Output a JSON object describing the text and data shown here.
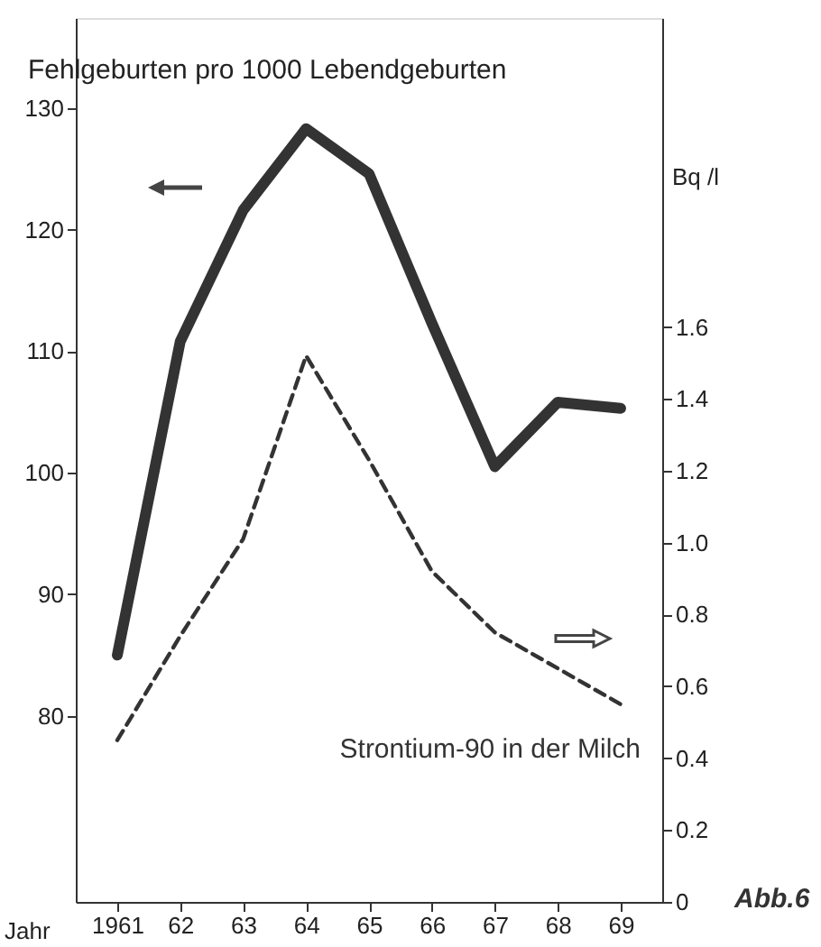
{
  "chart_data": {
    "type": "line",
    "ylabel": "Fehlgeburten pro 1000 Lebendgeburten",
    "xlabel": "Jahr",
    "y2label": "Bq /l",
    "annotations": [
      "Abb.6"
    ],
    "categories": [
      "1961",
      "62",
      "63",
      "64",
      "65",
      "66",
      "67",
      "68",
      "69"
    ],
    "series": [
      {
        "color": "#333333",
        "line_style": "solid",
        "values": [
          85.0,
          110.8,
          121.6,
          128.3,
          124.6,
          112.3,
          100.5,
          105.8,
          105.3
        ]
      },
      {
        "name": "Strontium-90 in der Milch",
        "axis": "y2",
        "color": "#333333",
        "line_style": "dashed",
        "values": [
          0.45,
          0.74,
          1.01,
          1.52,
          1.23,
          0.92,
          0.75,
          0.65,
          0.55
        ]
      }
    ],
    "ylim": [
      64.7,
      137.4
    ],
    "yticks": [
      80,
      90,
      100,
      110,
      120,
      130
    ],
    "y2lim": [
      0,
      2.46
    ],
    "y2ticks": [
      {
        "value": 0,
        "label": "0"
      },
      0.2,
      0.4,
      0.6,
      0.8,
      {
        "value": 1,
        "label": "1.0"
      },
      1.2,
      1.4,
      1.6
    ],
    "grid": false,
    "marker": "none"
  }
}
